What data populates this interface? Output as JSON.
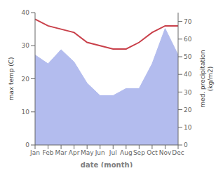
{
  "chart_data": {
    "type": "line",
    "xlabel": "date (month)",
    "ylabel": "max temp (C)",
    "y2label": "med. precipitation\n(kg/m2)",
    "categories": [
      "Jan",
      "Feb",
      "Mar",
      "Apr",
      "May",
      "Jun",
      "Jul",
      "Aug",
      "Sep",
      "Oct",
      "Nov",
      "Dec"
    ],
    "series": [
      {
        "type": "area",
        "axis": "y2",
        "color": "#b3bcee",
        "values": [
          51,
          46,
          54,
          47,
          35,
          28,
          28,
          32,
          32,
          46,
          66,
          51
        ]
      },
      {
        "type": "line",
        "color": "#c9404a",
        "values": [
          38,
          36,
          35,
          34,
          31,
          30,
          29,
          29,
          31,
          34,
          36,
          36
        ]
      }
    ],
    "ylim": [
      0,
      40
    ],
    "yticks": [
      0,
      10,
      20,
      30,
      40
    ],
    "y2lim": [
      0,
      75
    ],
    "y2ticks": [
      0,
      10,
      20,
      30,
      40,
      50,
      60,
      70
    ],
    "grid": false
  }
}
